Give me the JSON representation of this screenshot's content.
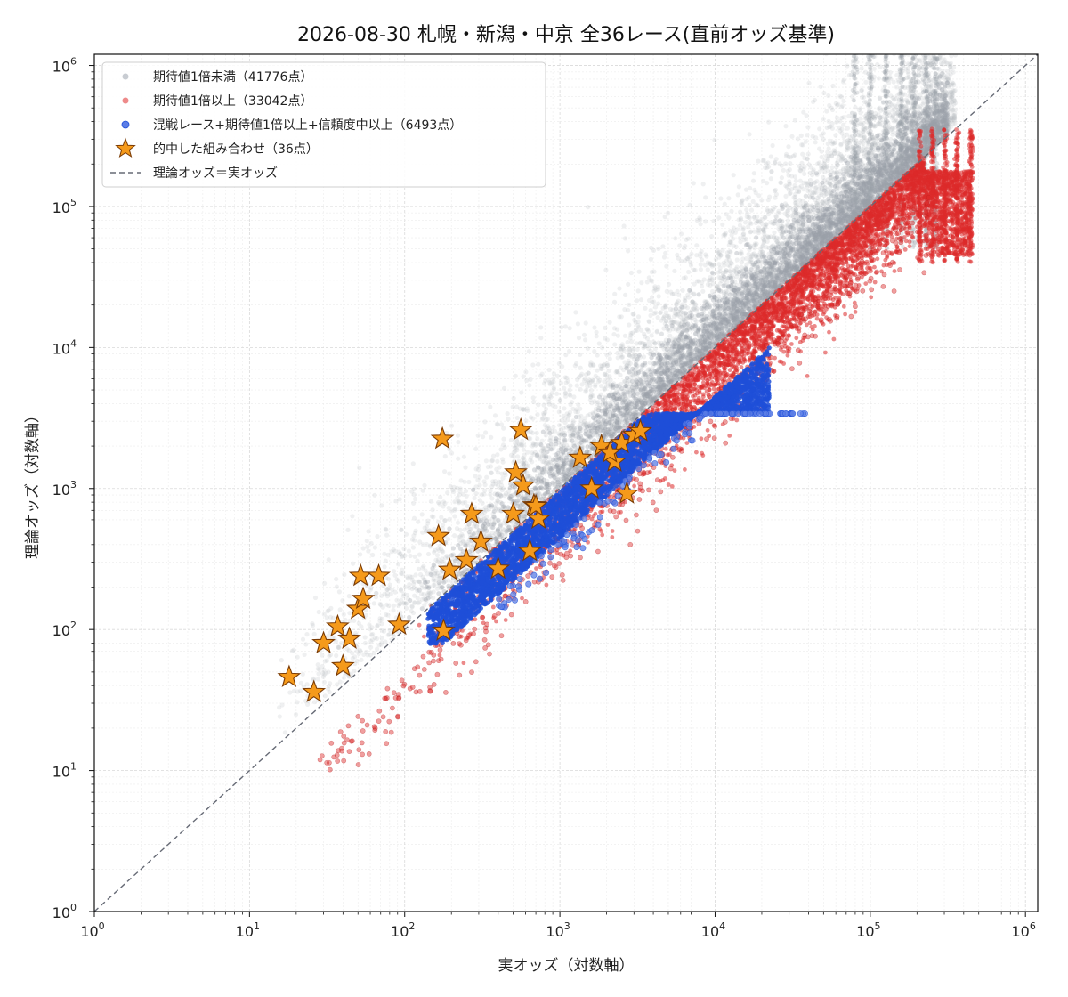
{
  "chart_data": {
    "type": "scatter",
    "title": "2026-08-30 札幌・新潟・中京 全36レース(直前オッズ基準)",
    "xlabel": "実オッズ（対数軸）",
    "ylabel": "理論オッズ（対数軸）",
    "x_scale": "log",
    "y_scale": "log",
    "xlim": [
      1,
      1200000
    ],
    "ylim": [
      1,
      1200000
    ],
    "x_ticks": [
      {
        "value": 1,
        "label": "10",
        "exp": "0"
      },
      {
        "value": 10,
        "label": "10",
        "exp": "1"
      },
      {
        "value": 100,
        "label": "10",
        "exp": "2"
      },
      {
        "value": 1000,
        "label": "10",
        "exp": "3"
      },
      {
        "value": 10000,
        "label": "10",
        "exp": "4"
      },
      {
        "value": 100000,
        "label": "10",
        "exp": "5"
      },
      {
        "value": 1000000,
        "label": "10",
        "exp": "6"
      }
    ],
    "y_ticks": [
      {
        "value": 1,
        "label": "10",
        "exp": "0"
      },
      {
        "value": 10,
        "label": "10",
        "exp": "1"
      },
      {
        "value": 100,
        "label": "10",
        "exp": "2"
      },
      {
        "value": 1000,
        "label": "10",
        "exp": "3"
      },
      {
        "value": 10000,
        "label": "10",
        "exp": "4"
      },
      {
        "value": 100000,
        "label": "10",
        "exp": "5"
      },
      {
        "value": 1000000,
        "label": "10",
        "exp": "6"
      }
    ],
    "grid": true,
    "legend_position": "top-left",
    "colors": {
      "below": "#9aa0aa",
      "above": "#dd2a2a",
      "blue": "#1f4fd8",
      "star_fill": "#f59a1b",
      "star_edge": "#7a3b05",
      "diagonal": "#666a75"
    },
    "series": [
      {
        "key": "below",
        "name": "期待値1倍未満（41776点）"
      },
      {
        "key": "above",
        "name": "期待値1倍以上（33042点）"
      },
      {
        "key": "blue",
        "name": "混戦レース+期待値1倍以上+信頼度中以上（6493点）"
      },
      {
        "key": "stars",
        "name": "的中した組み合わせ（36点）"
      },
      {
        "key": "diagonal",
        "name": "理論オッズ＝実オッズ"
      }
    ],
    "hits": [
      {
        "x": 18,
        "y": 46
      },
      {
        "x": 26,
        "y": 36
      },
      {
        "x": 30,
        "y": 80
      },
      {
        "x": 37,
        "y": 105
      },
      {
        "x": 40,
        "y": 55
      },
      {
        "x": 44,
        "y": 86
      },
      {
        "x": 50,
        "y": 140
      },
      {
        "x": 52,
        "y": 240
      },
      {
        "x": 54,
        "y": 165
      },
      {
        "x": 68,
        "y": 240
      },
      {
        "x": 92,
        "y": 108
      },
      {
        "x": 165,
        "y": 460
      },
      {
        "x": 175,
        "y": 2250
      },
      {
        "x": 178,
        "y": 98
      },
      {
        "x": 195,
        "y": 265
      },
      {
        "x": 250,
        "y": 310
      },
      {
        "x": 270,
        "y": 660
      },
      {
        "x": 310,
        "y": 420
      },
      {
        "x": 400,
        "y": 270
      },
      {
        "x": 500,
        "y": 660
      },
      {
        "x": 520,
        "y": 1300
      },
      {
        "x": 560,
        "y": 2600
      },
      {
        "x": 580,
        "y": 1050
      },
      {
        "x": 640,
        "y": 360
      },
      {
        "x": 680,
        "y": 760
      },
      {
        "x": 730,
        "y": 610
      },
      {
        "x": 1350,
        "y": 1650
      },
      {
        "x": 1600,
        "y": 1000
      },
      {
        "x": 1850,
        "y": 2000
      },
      {
        "x": 2250,
        "y": 1550
      },
      {
        "x": 2500,
        "y": 2100
      },
      {
        "x": 2700,
        "y": 920
      },
      {
        "x": 3000,
        "y": 2400
      },
      {
        "x": 3300,
        "y": 2550
      },
      {
        "x": 2100,
        "y": 1800
      },
      {
        "x": 700,
        "y": 750
      }
    ],
    "cloud_shape": {
      "blue_band_y_max": 3400,
      "blue_lower_ratio": 0.45,
      "red_lower_ratio": 0.35,
      "x_max_cluster": 450000
    }
  }
}
